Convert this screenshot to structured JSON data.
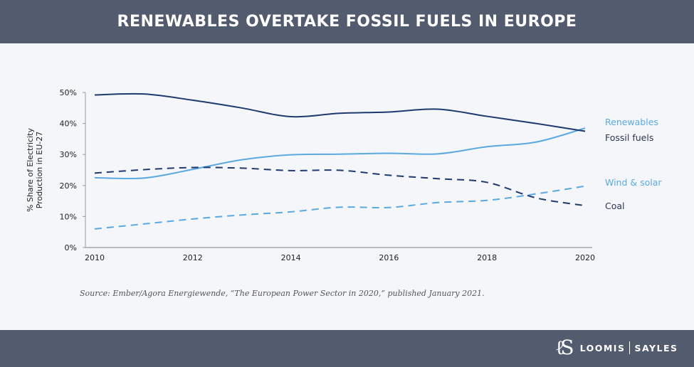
{
  "header": {
    "title": "RENEWABLES OVERTAKE FOSSIL FUELS IN EUROPE"
  },
  "source": "Source: Ember/Agora Energiewende, “The European Power Sector in 2020,” published January 2021.",
  "logo": {
    "left": "LOOMIS",
    "right": "SAYLES",
    "mark": "LS"
  },
  "chart_data": {
    "type": "line",
    "title": "",
    "xlabel": "",
    "ylabel": "% Share of Electricity Production in EU-27",
    "ylabel_lines": [
      "% Share of Electricity",
      "Production in EU-27"
    ],
    "x": [
      2010,
      2011,
      2012,
      2013,
      2014,
      2015,
      2016,
      2017,
      2018,
      2019,
      2020
    ],
    "xticks": [
      "2010",
      "2012",
      "2014",
      "2016",
      "2018",
      "2020"
    ],
    "yticks": [
      "0%",
      "10%",
      "20%",
      "30%",
      "40%",
      "50%"
    ],
    "ylim": [
      0,
      50
    ],
    "grid": false,
    "legend": "inline-right",
    "series": [
      {
        "name": "Renewables",
        "color": "#5aa9e0",
        "dashed": false,
        "values": [
          22.5,
          22.4,
          25.2,
          28.3,
          29.9,
          30.1,
          30.4,
          30.2,
          32.5,
          34,
          38.5
        ]
      },
      {
        "name": "Fossil fuels",
        "color": "#1f3a6e",
        "dashed": false,
        "values": [
          49.2,
          49.5,
          47.5,
          45,
          42.2,
          43.3,
          43.7,
          44.6,
          42.3,
          40,
          37.5
        ]
      },
      {
        "name": "Wind & solar",
        "color": "#5aa9e0",
        "dashed": true,
        "values": [
          6,
          7.6,
          9.2,
          10.5,
          11.5,
          13,
          12.9,
          14.5,
          15.2,
          17.3,
          19.8
        ]
      },
      {
        "name": "Coal",
        "color": "#1f3a6e",
        "dashed": true,
        "values": [
          24,
          25.1,
          25.8,
          25.6,
          24.8,
          24.9,
          23.3,
          22.2,
          21,
          16,
          13.5
        ]
      }
    ]
  }
}
